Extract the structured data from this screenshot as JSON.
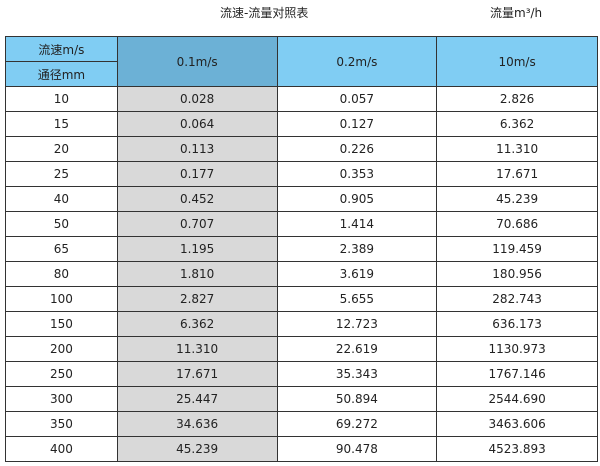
{
  "title": "流速-流量对照表",
  "unit_label": "流量m³/h",
  "header": {
    "velocity_label": "流速m/s",
    "diameter_label": "通径mm",
    "columns": [
      "0.1m/s",
      "0.2m/s",
      "10m/s"
    ]
  },
  "colors": {
    "header": "#80cdf3",
    "header_highlight": "#6cb1d6",
    "column_highlight": "#d9d9d9"
  },
  "rows": [
    [
      "10",
      "0.028",
      "0.057",
      "2.826"
    ],
    [
      "15",
      "0.064",
      "0.127",
      "6.362"
    ],
    [
      "20",
      "0.113",
      "0.226",
      "11.310"
    ],
    [
      "25",
      "0.177",
      "0.353",
      "17.671"
    ],
    [
      "40",
      "0.452",
      "0.905",
      "45.239"
    ],
    [
      "50",
      "0.707",
      "1.414",
      "70.686"
    ],
    [
      "65",
      "1.195",
      "2.389",
      "119.459"
    ],
    [
      "80",
      "1.810",
      "3.619",
      "180.956"
    ],
    [
      "100",
      "2.827",
      "5.655",
      "282.743"
    ],
    [
      "150",
      "6.362",
      "12.723",
      "636.173"
    ],
    [
      "200",
      "11.310",
      "22.619",
      "1130.973"
    ],
    [
      "250",
      "17.671",
      "35.343",
      "1767.146"
    ],
    [
      "300",
      "25.447",
      "50.894",
      "2544.690"
    ],
    [
      "350",
      "34.636",
      "69.272",
      "3463.606"
    ],
    [
      "400",
      "45.239",
      "90.478",
      "4523.893"
    ]
  ]
}
